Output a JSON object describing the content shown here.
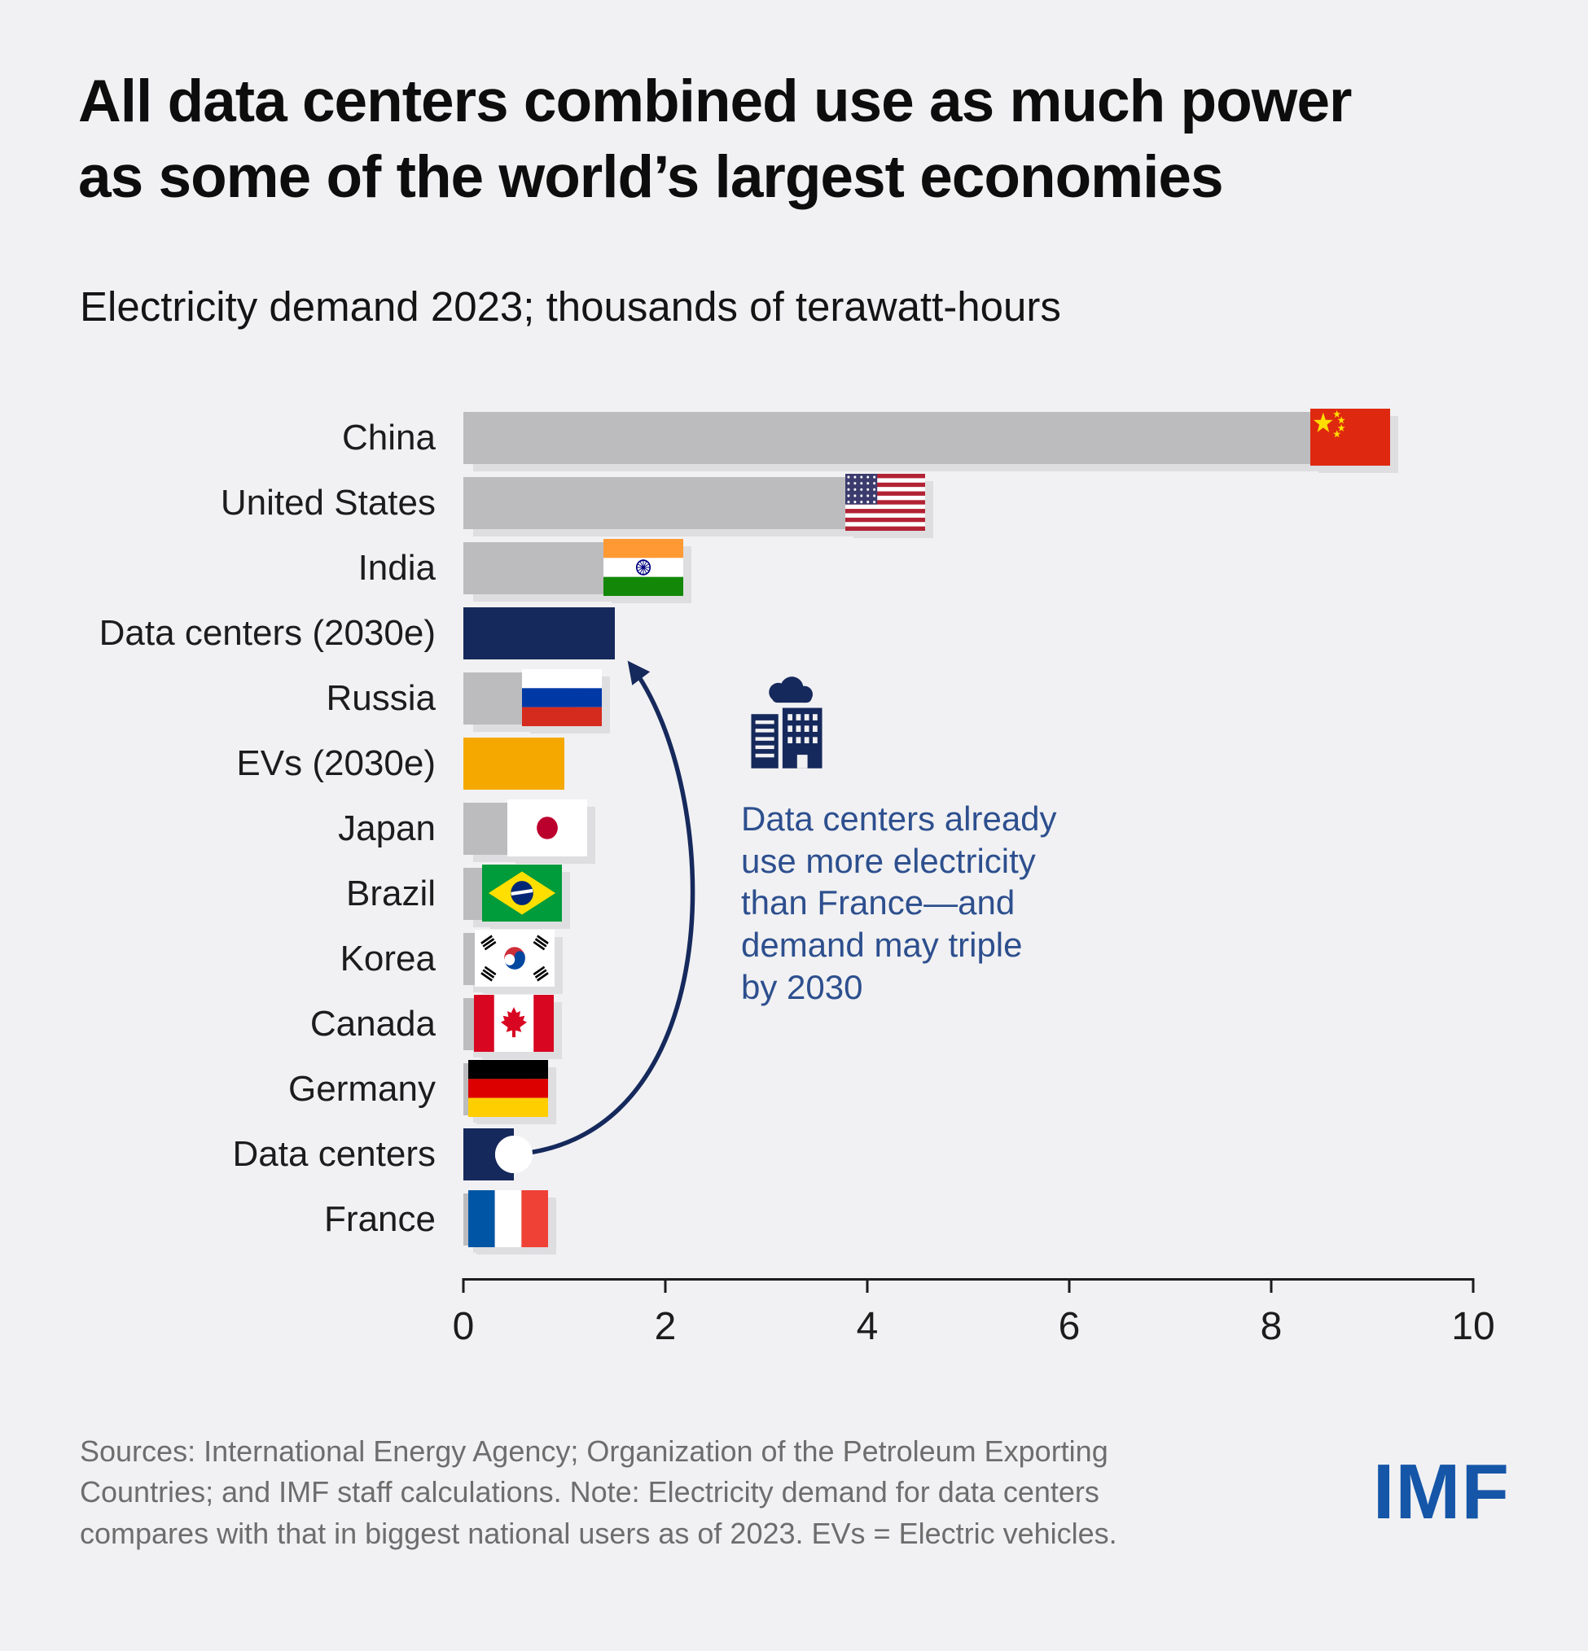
{
  "header": {
    "title": "All data centers combined use as much power\nas some of the world’s largest economies",
    "subtitle": "Electricity demand 2023; thousands of terawatt-hours"
  },
  "chart_data": {
    "type": "bar",
    "orientation": "horizontal",
    "title": "All data centers combined use as much power as some of the world’s largest economies",
    "subtitle": "Electricity demand 2023; thousands of terawatt-hours",
    "xlabel": "",
    "ylabel": "",
    "xlim": [
      0,
      10
    ],
    "x_ticks": [
      0,
      2,
      4,
      6,
      8,
      10
    ],
    "grid": false,
    "bars": [
      {
        "label": "China",
        "value": 8.9,
        "type": "country",
        "flag": "china-flag"
      },
      {
        "label": "United States",
        "value": 4.3,
        "type": "country",
        "flag": "us-flag"
      },
      {
        "label": "India",
        "value": 1.9,
        "type": "country",
        "flag": "india-flag"
      },
      {
        "label": "Data centers (2030e)",
        "value": 1.5,
        "type": "datacenter"
      },
      {
        "label": "Russia",
        "value": 1.1,
        "type": "country",
        "flag": "russia-flag"
      },
      {
        "label": "EVs (2030e)",
        "value": 1.0,
        "type": "ev"
      },
      {
        "label": "Japan",
        "value": 0.95,
        "type": "country",
        "flag": "japan-flag"
      },
      {
        "label": "Brazil",
        "value": 0.7,
        "type": "country",
        "flag": "brazil-flag"
      },
      {
        "label": "Korea",
        "value": 0.63,
        "type": "country",
        "flag": "korea-flag"
      },
      {
        "label": "Canada",
        "value": 0.62,
        "type": "country",
        "flag": "canada-flag"
      },
      {
        "label": "Germany",
        "value": 0.55,
        "type": "country",
        "flag": "germany-flag"
      },
      {
        "label": "Data centers",
        "value": 0.5,
        "type": "datacenter",
        "marker": true
      },
      {
        "label": "France",
        "value": 0.45,
        "type": "country",
        "flag": "france-flag"
      }
    ],
    "colors": {
      "country_bar": "#bcbcbe",
      "datacenter_bar": "#16295c",
      "ev_bar": "#f5a800",
      "annotation_text": "#2d4f8e",
      "arrow": "#16295c",
      "background": "#f1f1f3"
    },
    "annotation": {
      "icon": "data-center-building-icon",
      "text": "Data centers already\nuse more electricity\nthan France—and\ndemand may triple\nby 2030"
    }
  },
  "footer": {
    "source": "Sources: International Energy Agency; Organization of the Petroleum Exporting\nCountries; and IMF staff calculations. Note: Electricity demand for data centers\ncompares with that in biggest national users as of 2023. EVs = Electric vehicles.",
    "logo": "IMF"
  }
}
